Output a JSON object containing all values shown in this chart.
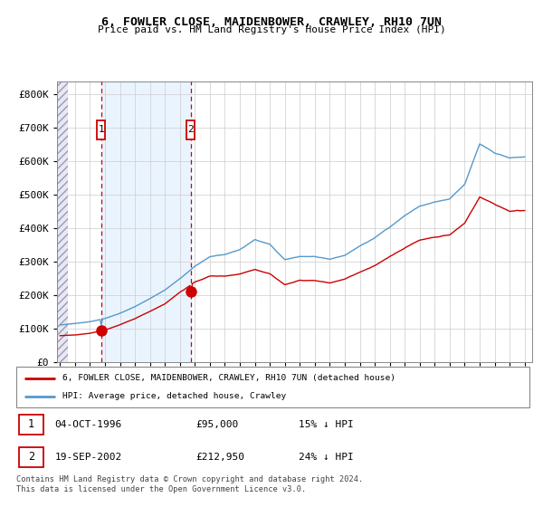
{
  "title": "6, FOWLER CLOSE, MAIDENBOWER, CRAWLEY, RH10 7UN",
  "subtitle": "Price paid vs. HM Land Registry's House Price Index (HPI)",
  "sale1_date": "04-OCT-1996",
  "sale1_price": 95000,
  "sale1_x": 1996.75,
  "sale1_label": "15% ↓ HPI",
  "sale2_date": "19-SEP-2002",
  "sale2_price": 212950,
  "sale2_x": 2002.72,
  "sale2_label": "24% ↓ HPI",
  "legend_line1": "6, FOWLER CLOSE, MAIDENBOWER, CRAWLEY, RH10 7UN (detached house)",
  "legend_line2": "HPI: Average price, detached house, Crawley",
  "footer": "Contains HM Land Registry data © Crown copyright and database right 2024.\nThis data is licensed under the Open Government Licence v3.0.",
  "sale_color": "#cc0000",
  "hpi_color": "#5599cc",
  "ylim": [
    0,
    840000
  ],
  "yticks": [
    0,
    100000,
    200000,
    300000,
    400000,
    500000,
    600000,
    700000,
    800000
  ],
  "xlim": [
    1993.8,
    2025.5
  ],
  "hatch_x_end": 1994.5,
  "xticks": [
    1994,
    1995,
    1996,
    1997,
    1998,
    1999,
    2000,
    2001,
    2002,
    2003,
    2004,
    2005,
    2006,
    2007,
    2008,
    2009,
    2010,
    2011,
    2012,
    2013,
    2014,
    2015,
    2016,
    2017,
    2018,
    2019,
    2020,
    2021,
    2022,
    2023,
    2024,
    2025
  ]
}
